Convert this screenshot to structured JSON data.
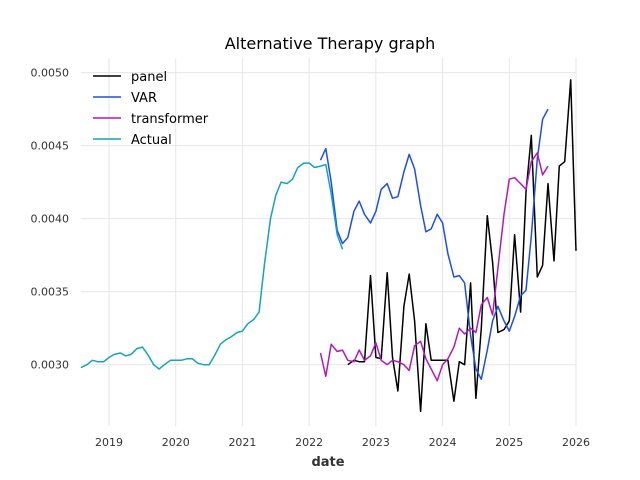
{
  "chart_data": {
    "type": "line",
    "title": "Alternative Therapy graph",
    "xlabel": "date",
    "ylabel": "",
    "xlim": [
      2018.58,
      2026.0
    ],
    "ylim": [
      0.00258,
      0.0051
    ],
    "x_ticks": [
      2019,
      2020,
      2021,
      2022,
      2023,
      2024,
      2025,
      2026
    ],
    "x_tick_labels": [
      "2019",
      "2020",
      "2021",
      "2022",
      "2023",
      "2024",
      "2025",
      "2026"
    ],
    "y_ticks": [
      0.003,
      0.0035,
      0.004,
      0.0045,
      0.005
    ],
    "y_tick_labels": [
      "0.0030",
      "0.0035",
      "0.0040",
      "0.0045",
      "0.0050"
    ],
    "grid": true,
    "legend_position": "top-left",
    "series": [
      {
        "name": "panel",
        "color": "#000000",
        "x": [
          2022.58,
          2022.67,
          2022.75,
          2022.83,
          2022.92,
          2023.0,
          2023.08,
          2023.17,
          2023.25,
          2023.33,
          2023.42,
          2023.5,
          2023.58,
          2023.67,
          2023.75,
          2023.83,
          2023.92,
          2024.0,
          2024.08,
          2024.17,
          2024.25,
          2024.33,
          2024.42,
          2024.5,
          2024.58,
          2024.67,
          2024.75,
          2024.83,
          2024.92,
          2025.0,
          2025.08,
          2025.17,
          2025.25,
          2025.33,
          2025.42,
          2025.5,
          2025.58,
          2025.67,
          2025.75,
          2025.83,
          2025.92,
          2026.0
        ],
        "values": [
          0.003,
          0.00303,
          0.00302,
          0.00302,
          0.00361,
          0.00305,
          0.00304,
          0.00363,
          0.00305,
          0.00282,
          0.0034,
          0.00362,
          0.0033,
          0.00268,
          0.00328,
          0.00303,
          0.00303,
          0.00303,
          0.00303,
          0.00275,
          0.00302,
          0.003,
          0.00356,
          0.00277,
          0.00325,
          0.00402,
          0.0037,
          0.00322,
          0.00324,
          0.0033,
          0.00389,
          0.00336,
          0.00418,
          0.00457,
          0.0036,
          0.00368,
          0.00424,
          0.00371,
          0.00436,
          0.00439,
          0.00495,
          0.00378
        ]
      },
      {
        "name": "VAR",
        "color": "#1f4fe0",
        "x": [
          2022.17,
          2022.25,
          2022.33,
          2022.42,
          2022.5,
          2022.58,
          2022.67,
          2022.75,
          2022.83,
          2022.92,
          2023.0,
          2023.08,
          2023.17,
          2023.25,
          2023.33,
          2023.42,
          2023.5,
          2023.58,
          2023.67,
          2023.75,
          2023.83,
          2023.92,
          2024.0,
          2024.08,
          2024.17,
          2024.25,
          2024.33,
          2024.42,
          2024.5,
          2024.58,
          2024.67,
          2024.75,
          2024.83,
          2024.92,
          2025.0,
          2025.08,
          2025.17,
          2025.25,
          2025.33,
          2025.42,
          2025.5,
          2025.58
        ],
        "values": [
          0.0044,
          0.00448,
          0.00425,
          0.00392,
          0.00383,
          0.00387,
          0.00405,
          0.00412,
          0.00403,
          0.00397,
          0.00405,
          0.0042,
          0.00424,
          0.00414,
          0.00415,
          0.00432,
          0.00444,
          0.00434,
          0.00409,
          0.00391,
          0.00393,
          0.00403,
          0.00397,
          0.00376,
          0.0036,
          0.00361,
          0.00356,
          0.0032,
          0.00297,
          0.0029,
          0.0031,
          0.0033,
          0.0034,
          0.0033,
          0.00323,
          0.00333,
          0.00347,
          0.00351,
          0.00388,
          0.00441,
          0.00468,
          0.00475
        ]
      },
      {
        "name": "transformer",
        "color": "#b01ab8",
        "x": [
          2022.17,
          2022.25,
          2022.33,
          2022.42,
          2022.5,
          2022.58,
          2022.67,
          2022.75,
          2022.83,
          2022.92,
          2023.0,
          2023.08,
          2023.17,
          2023.25,
          2023.33,
          2023.42,
          2023.5,
          2023.58,
          2023.67,
          2023.75,
          2023.83,
          2023.92,
          2024.0,
          2024.08,
          2024.17,
          2024.25,
          2024.33,
          2024.42,
          2024.5,
          2024.58,
          2024.67,
          2024.75,
          2024.83,
          2024.92,
          2025.0,
          2025.08,
          2025.17,
          2025.25,
          2025.33,
          2025.42,
          2025.5,
          2025.58
        ],
        "values": [
          0.00308,
          0.00292,
          0.00314,
          0.00309,
          0.0031,
          0.00303,
          0.00302,
          0.0031,
          0.00303,
          0.00306,
          0.00315,
          0.00303,
          0.003,
          0.00303,
          0.00302,
          0.003,
          0.00296,
          0.00313,
          0.00316,
          0.00304,
          0.00297,
          0.00289,
          0.003,
          0.00304,
          0.00312,
          0.00325,
          0.00321,
          0.00325,
          0.00322,
          0.00341,
          0.00346,
          0.00334,
          0.00366,
          0.00403,
          0.00427,
          0.00428,
          0.00424,
          0.0042,
          0.00439,
          0.00445,
          0.0043,
          0.00436
        ]
      },
      {
        "name": "Actual",
        "color": "#17a2b8",
        "x": [
          2018.58,
          2018.67,
          2018.75,
          2018.83,
          2018.92,
          2019.0,
          2019.08,
          2019.17,
          2019.25,
          2019.33,
          2019.42,
          2019.5,
          2019.58,
          2019.67,
          2019.75,
          2019.83,
          2019.92,
          2020.0,
          2020.08,
          2020.17,
          2020.25,
          2020.33,
          2020.42,
          2020.5,
          2020.58,
          2020.67,
          2020.75,
          2020.83,
          2020.92,
          2021.0,
          2021.08,
          2021.17,
          2021.25,
          2021.33,
          2021.42,
          2021.5,
          2021.58,
          2021.67,
          2021.75,
          2021.83,
          2021.92,
          2022.0,
          2022.08,
          2022.17,
          2022.25,
          2022.33,
          2022.42,
          2022.5
        ],
        "values": [
          0.00298,
          0.003,
          0.00303,
          0.00302,
          0.00302,
          0.00305,
          0.00307,
          0.00308,
          0.00306,
          0.00307,
          0.00311,
          0.00312,
          0.00307,
          0.003,
          0.00297,
          0.003,
          0.00303,
          0.00303,
          0.00303,
          0.00304,
          0.00304,
          0.00301,
          0.003,
          0.003,
          0.00306,
          0.00314,
          0.00317,
          0.00319,
          0.00322,
          0.00323,
          0.00328,
          0.00331,
          0.00336,
          0.00369,
          0.004,
          0.00416,
          0.00425,
          0.00424,
          0.00427,
          0.00435,
          0.00438,
          0.00438,
          0.00435,
          0.00436,
          0.00437,
          0.00417,
          0.00389,
          0.00379
        ]
      }
    ]
  }
}
